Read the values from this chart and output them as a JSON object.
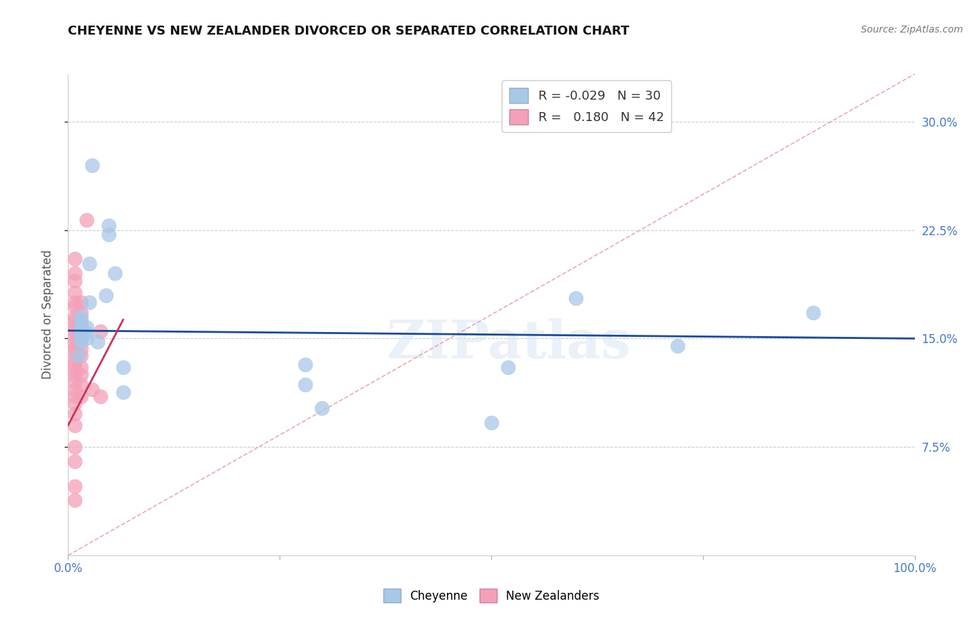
{
  "title": "CHEYENNE VS NEW ZEALANDER DIVORCED OR SEPARATED CORRELATION CHART",
  "source": "Source: ZipAtlas.com",
  "ylabel": "Divorced or Separated",
  "xlim": [
    0.0,
    1.0
  ],
  "ylim": [
    0.0,
    0.333
  ],
  "ytick_vals": [
    0.075,
    0.15,
    0.225,
    0.3
  ],
  "ytick_labels": [
    "7.5%",
    "15.0%",
    "22.5%",
    "30.0%"
  ],
  "xtick_vals": [
    0.0,
    0.25,
    0.5,
    0.75,
    1.0
  ],
  "xtick_labels": [
    "0.0%",
    "",
    "",
    "",
    "100.0%"
  ],
  "legend_R_cheyenne": "-0.029",
  "legend_N_cheyenne": "30",
  "legend_R_nz": "0.180",
  "legend_N_nz": "42",
  "cheyenne_color": "#a8c8e8",
  "nz_color": "#f4a0b8",
  "cheyenne_line_color": "#1a4a9a",
  "nz_line_color": "#cc3355",
  "diagonal_color": "#e8a0a8",
  "watermark": "ZIPatlas",
  "tick_color": "#4477cc",
  "grid_color": "#cccccc",
  "cheyenne_points": [
    [
      0.028,
      0.27
    ],
    [
      0.048,
      0.228
    ],
    [
      0.048,
      0.222
    ],
    [
      0.025,
      0.202
    ],
    [
      0.055,
      0.195
    ],
    [
      0.045,
      0.18
    ],
    [
      0.025,
      0.175
    ],
    [
      0.015,
      0.165
    ],
    [
      0.015,
      0.162
    ],
    [
      0.015,
      0.16
    ],
    [
      0.015,
      0.158
    ],
    [
      0.015,
      0.155
    ],
    [
      0.015,
      0.153
    ],
    [
      0.015,
      0.15
    ],
    [
      0.015,
      0.148
    ],
    [
      0.022,
      0.158
    ],
    [
      0.022,
      0.154
    ],
    [
      0.022,
      0.15
    ],
    [
      0.035,
      0.148
    ],
    [
      0.012,
      0.138
    ],
    [
      0.065,
      0.13
    ],
    [
      0.065,
      0.113
    ],
    [
      0.28,
      0.132
    ],
    [
      0.28,
      0.118
    ],
    [
      0.52,
      0.13
    ],
    [
      0.72,
      0.145
    ],
    [
      0.88,
      0.168
    ],
    [
      0.6,
      0.178
    ],
    [
      0.3,
      0.102
    ],
    [
      0.5,
      0.092
    ]
  ],
  "nz_points": [
    [
      0.008,
      0.205
    ],
    [
      0.008,
      0.195
    ],
    [
      0.008,
      0.19
    ],
    [
      0.008,
      0.182
    ],
    [
      0.008,
      0.175
    ],
    [
      0.008,
      0.172
    ],
    [
      0.008,
      0.165
    ],
    [
      0.008,
      0.162
    ],
    [
      0.008,
      0.158
    ],
    [
      0.008,
      0.155
    ],
    [
      0.008,
      0.15
    ],
    [
      0.008,
      0.147
    ],
    [
      0.008,
      0.143
    ],
    [
      0.008,
      0.14
    ],
    [
      0.008,
      0.135
    ],
    [
      0.008,
      0.132
    ],
    [
      0.008,
      0.128
    ],
    [
      0.008,
      0.125
    ],
    [
      0.008,
      0.12
    ],
    [
      0.008,
      0.115
    ],
    [
      0.008,
      0.11
    ],
    [
      0.008,
      0.105
    ],
    [
      0.015,
      0.175
    ],
    [
      0.015,
      0.168
    ],
    [
      0.015,
      0.16
    ],
    [
      0.015,
      0.153
    ],
    [
      0.015,
      0.143
    ],
    [
      0.015,
      0.138
    ],
    [
      0.015,
      0.13
    ],
    [
      0.015,
      0.125
    ],
    [
      0.015,
      0.118
    ],
    [
      0.015,
      0.11
    ],
    [
      0.022,
      0.232
    ],
    [
      0.028,
      0.115
    ],
    [
      0.038,
      0.155
    ],
    [
      0.038,
      0.11
    ],
    [
      0.008,
      0.098
    ],
    [
      0.008,
      0.09
    ],
    [
      0.008,
      0.075
    ],
    [
      0.008,
      0.065
    ],
    [
      0.008,
      0.048
    ],
    [
      0.008,
      0.038
    ]
  ]
}
